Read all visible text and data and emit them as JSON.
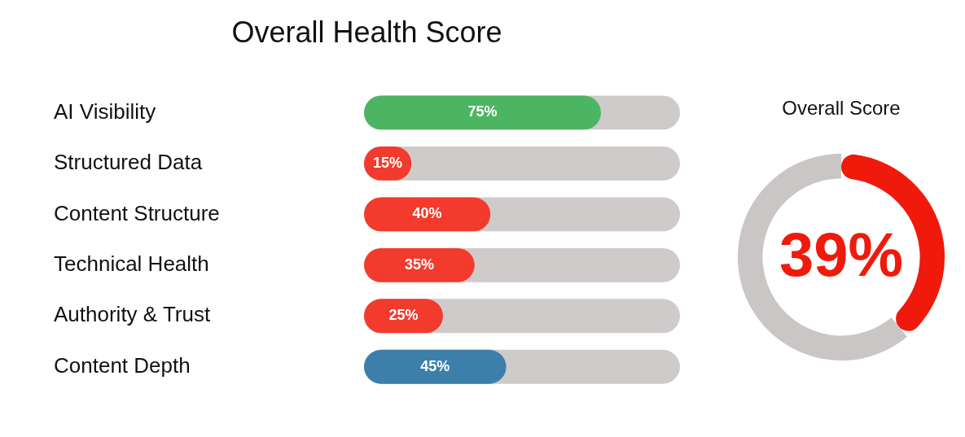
{
  "chart_data": [
    {
      "type": "bar",
      "title": "Overall Health Score",
      "orientation": "horizontal",
      "categories": [
        "AI Visibility",
        "Structured Data",
        "Content Structure",
        "Technical Health",
        "Authority & Trust",
        "Content Depth"
      ],
      "values": [
        75,
        15,
        40,
        35,
        25,
        45
      ],
      "colors": [
        "#4cb562",
        "#f23b2c",
        "#f23b2c",
        "#f23b2c",
        "#f23b2c",
        "#3d7fab"
      ],
      "xlim": [
        0,
        100
      ],
      "tick_labels": "y",
      "legend": false,
      "value_labels": [
        "75%",
        "15%",
        "40%",
        "35%",
        "25%",
        "45%"
      ]
    },
    {
      "type": "donut",
      "title": "Overall Score",
      "categories": [
        null,
        null
      ],
      "values": [
        39,
        61
      ],
      "colors": [
        "#f01a0c",
        "#c9c6c5"
      ],
      "value_labels": [
        "39%",
        null
      ],
      "legend": false
    }
  ]
}
